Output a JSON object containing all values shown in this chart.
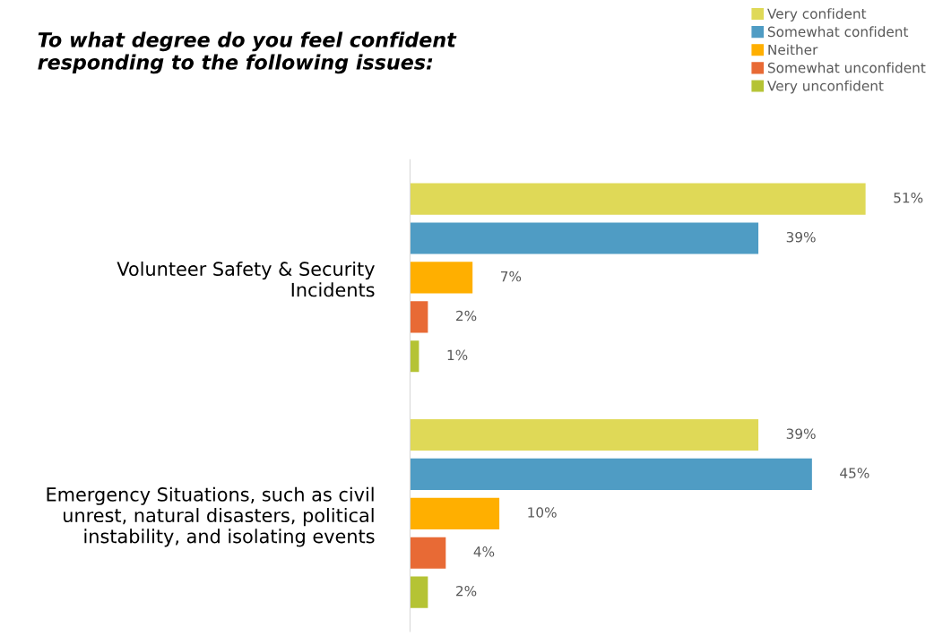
{
  "chart_data": {
    "type": "bar",
    "orientation": "horizontal",
    "title": "To what degree do you feel confident responding to the following issues:",
    "categories": [
      "Volunteer Safety & Security Incidents",
      "Emergency Situations, such as civil unrest, natural disasters, political instability, and isolating events"
    ],
    "series": [
      {
        "name": "Very confident",
        "color": "#dfd957",
        "values": [
          51,
          39
        ],
        "value_labels": [
          "51%",
          "39%"
        ]
      },
      {
        "name": "Somewhat confident",
        "color": "#4f9cc4",
        "values": [
          39,
          45
        ],
        "value_labels": [
          "39%",
          "45%"
        ]
      },
      {
        "name": "Neither",
        "color": "#ffaf00",
        "values": [
          7,
          10
        ],
        "value_labels": [
          "7%",
          "10%"
        ]
      },
      {
        "name": "Somewhat unconfident",
        "color": "#e86a35",
        "values": [
          2,
          4
        ],
        "value_labels": [
          "2%",
          "4%"
        ]
      },
      {
        "name": "Very unconfident",
        "color": "#b5c334",
        "values": [
          1,
          2
        ],
        "value_labels": [
          "1%",
          "2%"
        ]
      }
    ],
    "tick_labels": "y",
    "grid": false,
    "legend": "top right"
  }
}
